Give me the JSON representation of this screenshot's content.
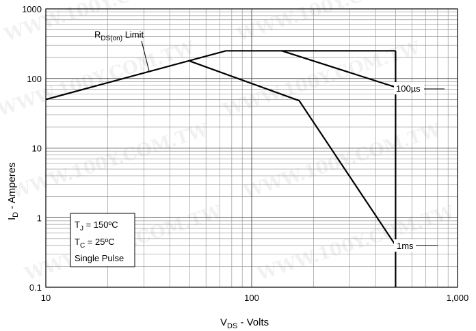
{
  "chart_data": {
    "type": "line",
    "xscale": "log",
    "yscale": "log",
    "xlim": [
      10,
      1000
    ],
    "ylim": [
      0.1,
      1000
    ],
    "grid": true,
    "xticks": [
      "10",
      "100",
      "1,000"
    ],
    "yticks": [
      "0.1",
      "1",
      "10",
      "100",
      "1000"
    ],
    "xlabel": {
      "main": "V",
      "sub": "DS",
      "rest": " - Volts"
    },
    "ylabel": {
      "main": "I",
      "sub": "D",
      "rest": " - Amperes"
    },
    "series": [
      {
        "label": "RDS(on) Limit",
        "x": [
          10,
          75
        ],
        "y": [
          50,
          250
        ]
      },
      {
        "x": [
          75,
          500
        ],
        "y": [
          250,
          250
        ]
      },
      {
        "x": [
          500,
          500
        ],
        "y": [
          250,
          0.1
        ]
      },
      {
        "label": "100µs",
        "x": [
          140,
          500
        ],
        "y": [
          250,
          75
        ]
      },
      {
        "label": "1ms",
        "x": [
          50,
          170,
          500
        ],
        "y": [
          178,
          48,
          0.4
        ]
      }
    ],
    "annotations": {
      "rds": {
        "main": "R",
        "sub": "DS(on)",
        "rest": " Limit"
      },
      "us100": "100µs",
      "ms1": "1ms"
    },
    "legend_box": {
      "tj": {
        "main": "T",
        "sub": "J",
        "rest": " = 150ºC"
      },
      "tc": {
        "main": "T",
        "sub": "C",
        "rest": " = 25ºC"
      },
      "pulse": "Single Pulse"
    },
    "watermark": "WWW.100Y.COM.TW"
  }
}
